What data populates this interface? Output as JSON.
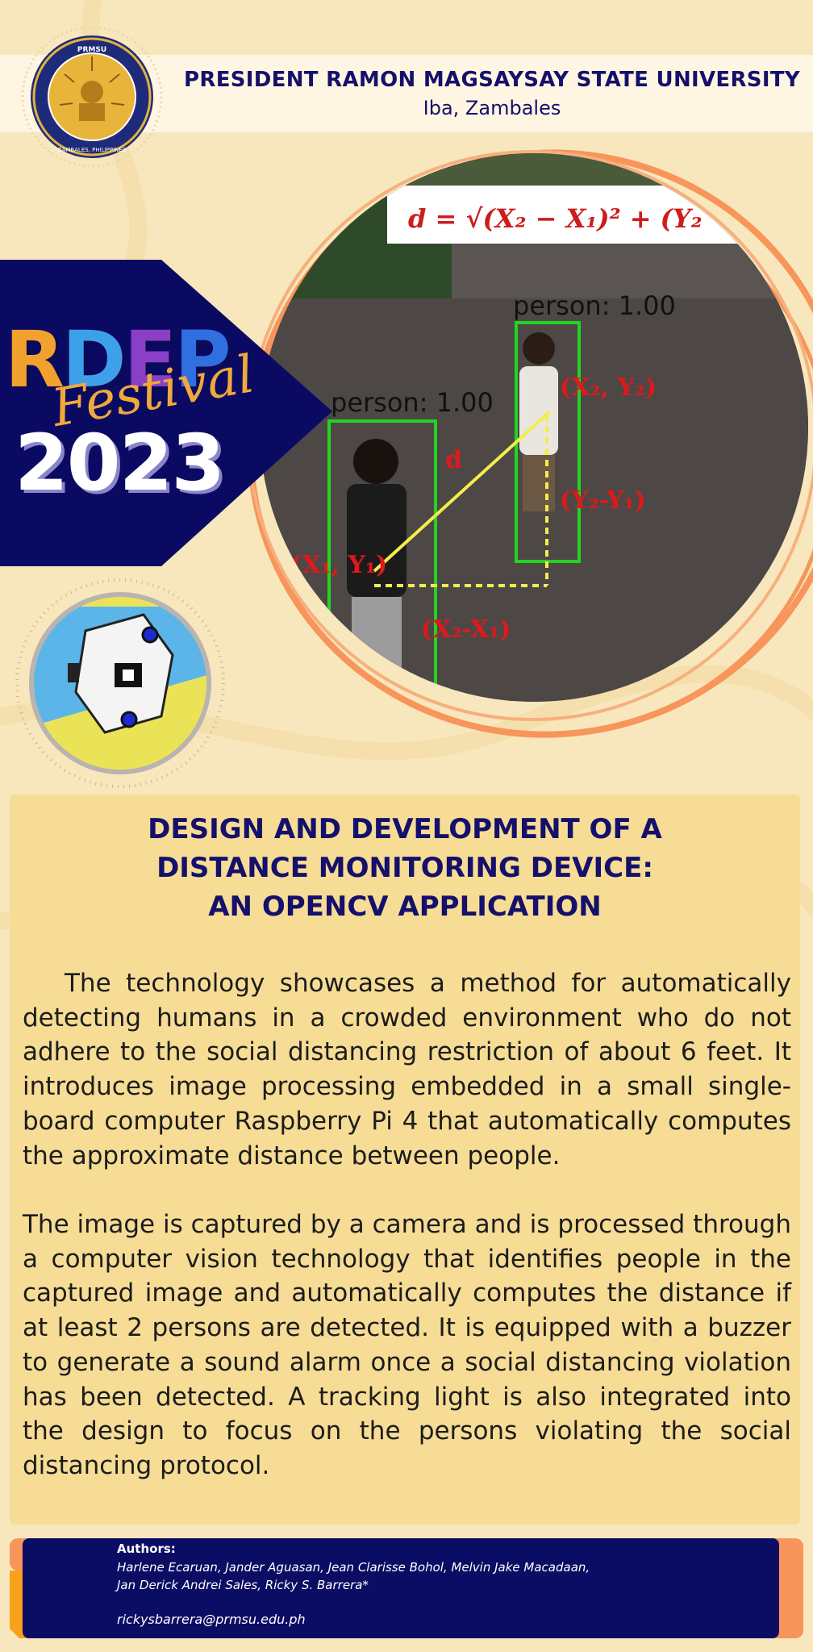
{
  "colors": {
    "background": "#f8e7bd",
    "navy": "#14106b",
    "banner_navy": "#0b0a63",
    "orange": "#f7955a",
    "panel": "#f6dc95",
    "box_green": "#22d322",
    "annotation_red": "#e0181c"
  },
  "header": {
    "university": "PRESIDENT RAMON MAGSAYSAY STATE UNIVERSITY",
    "location": "Iba, Zambales",
    "seal_outer_text": "PRESIDENT RAMON MAGSAYSAY STATE UNIVERSITY",
    "seal_inner_text": "ZAMBALES, PHILIPPINES"
  },
  "festival": {
    "letters": [
      "R",
      "D",
      "E",
      "P"
    ],
    "letter_colors": [
      "#f2a12e",
      "#3fa0ea",
      "#8a3fc6",
      "#2f6fe0"
    ],
    "script": "Festival",
    "year": "2023"
  },
  "photo": {
    "formula": "d = √(X₂ − X₁)² + (Y₂",
    "label_right": "person: 1.00",
    "label_left": "person: 1.00",
    "point_right": "(X₂, Y₂)",
    "point_left": "(X₁, Y₁)",
    "distance": "d",
    "dy": "(Y₂-Y₁)",
    "dx": "(X₂-X₁)"
  },
  "project": {
    "title_lines": [
      "DESIGN AND DEVELOPMENT OF A",
      "DISTANCE MONITORING DEVICE:",
      "AN OPENCV APPLICATION"
    ],
    "paragraph1": "The technology showcases a method for automatically detecting humans in a crowded environment who do not adhere to the social distancing restriction of about 6 feet. It introduces image processing embedded in a small single-board computer Raspberry Pi 4 that automatically computes the approximate distance between people.",
    "paragraph2": "The image is captured by a camera and is processed through a computer vision technology that identifies people in the captured image and automatically computes the distance if at least 2 persons are detected. It is equipped with a buzzer to generate a sound alarm once a social distancing violation has been detected. A tracking light is also integrated into the design to focus on the persons violating the social distancing protocol."
  },
  "footer": {
    "authors_label": "Authors:",
    "authors_line1": "Harlene Ecaruan, Jander Aguasan, Jean Clarisse Bohol, Melvin Jake Macadaan,",
    "authors_line2": "Jan Derick Andrei Sales, Ricky S. Barrera*",
    "email": "rickysbarrera@prmsu.edu.ph"
  },
  "icons": [
    "university-seal-icon",
    "device-illustration-icon"
  ]
}
